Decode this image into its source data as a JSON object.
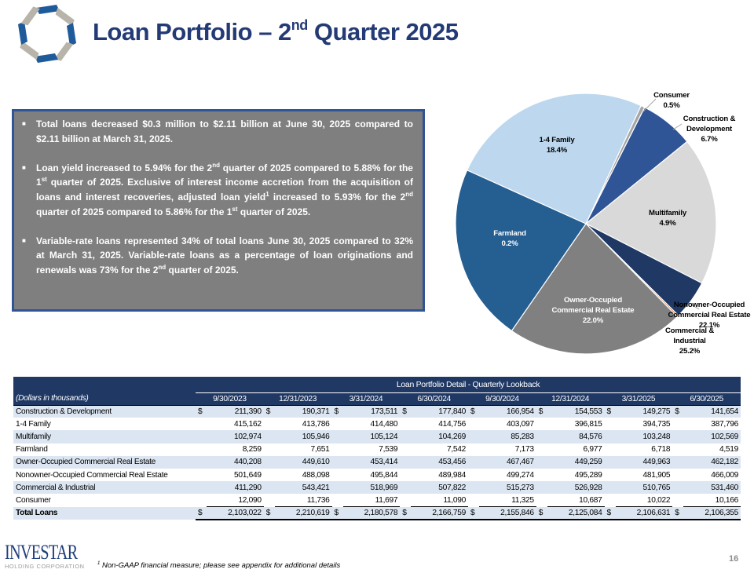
{
  "header": {
    "title_pre": "Loan Portfolio – 2",
    "title_sup": "nd",
    "title_post": " Quarter 2025"
  },
  "summary": {
    "bullets": [
      [
        {
          "t": "Total loans decreased $0.3 million to $2.11 billion at June 30, 2025 compared to $2.11 billion at March 31, 2025."
        }
      ],
      [
        {
          "t": "Loan yield increased to 5.94% for the 2"
        },
        {
          "s": "nd"
        },
        {
          "t": " quarter of 2025 compared to 5.88% for the 1"
        },
        {
          "s": "st"
        },
        {
          "t": " quarter of 2025. Exclusive of interest income accretion from the acquisition of loans and interest recoveries, adjusted loan yield"
        },
        {
          "s": "1"
        },
        {
          "t": " increased to 5.93% for the 2"
        },
        {
          "s": "nd"
        },
        {
          "t": " quarter of 2025 compared to 5.86% for the 1"
        },
        {
          "s": "st"
        },
        {
          "t": " quarter of 2025."
        }
      ],
      [
        {
          "t": "Variable-rate loans represented 34% of total loans June 30, 2025 compared to 32% at March 31, 2025. Variable-rate loans as a percentage of loan originations and renewals was 73% for the 2"
        },
        {
          "s": "nd"
        },
        {
          "t": " quarter of 2025."
        }
      ]
    ]
  },
  "chart_data": {
    "type": "pie",
    "title": "",
    "start_angle_deg": 25,
    "slices": [
      {
        "label": [
          "Consumer"
        ],
        "value": 0.5,
        "pct": "0.5%",
        "color": "#a6a6a6"
      },
      {
        "label": [
          "Construction &",
          "Development"
        ],
        "value": 6.7,
        "pct": "6.7%",
        "color": "#2f5597"
      },
      {
        "label": [
          "1-4 Family"
        ],
        "value": 18.4,
        "pct": "18.4%",
        "color": "#d9d9d9"
      },
      {
        "label": [
          "Multifamily"
        ],
        "value": 4.9,
        "pct": "4.9%",
        "color": "#1f3864"
      },
      {
        "label": [
          "Farmland"
        ],
        "value": 0.2,
        "pct": "0.2%",
        "color": "#c55a11"
      },
      {
        "label": [
          "Owner-Occupied",
          "Commercial Real Estate"
        ],
        "value": 22.0,
        "pct": "22.0%",
        "color": "#808080"
      },
      {
        "label": [
          "Nonowner-Occupied",
          "Commercial Real Estate"
        ],
        "value": 22.1,
        "pct": "22.1%",
        "color": "#255e91"
      },
      {
        "label": [
          "Commercial &",
          "Industrial"
        ],
        "value": 25.2,
        "pct": "25.2%",
        "color": "#bdd7ee"
      }
    ]
  },
  "table": {
    "title": "Loan Portfolio Detail - Quarterly Lookback",
    "units": "(Dollars in thousands)",
    "columns": [
      "9/30/2023",
      "12/31/2023",
      "3/31/2024",
      "6/30/2024",
      "9/30/2024",
      "12/31/2024",
      "3/31/2025",
      "6/30/2025"
    ],
    "currency": "$",
    "rows": [
      {
        "label": "Construction & Development",
        "dollar": true,
        "values": [
          "211,390",
          "190,371",
          "173,511",
          "177,840",
          "166,954",
          "154,553",
          "149,275",
          "141,654"
        ]
      },
      {
        "label": "1-4 Family",
        "values": [
          "415,162",
          "413,786",
          "414,480",
          "414,756",
          "403,097",
          "396,815",
          "394,735",
          "387,796"
        ]
      },
      {
        "label": "Multifamily",
        "values": [
          "102,974",
          "105,946",
          "105,124",
          "104,269",
          "85,283",
          "84,576",
          "103,248",
          "102,569"
        ]
      },
      {
        "label": "Farmland",
        "values": [
          "8,259",
          "7,651",
          "7,539",
          "7,542",
          "7,173",
          "6,977",
          "6,718",
          "4,519"
        ]
      },
      {
        "label": "Owner-Occupied Commercial Real Estate",
        "values": [
          "440,208",
          "449,610",
          "453,414",
          "453,456",
          "467,467",
          "449,259",
          "449,963",
          "462,182"
        ]
      },
      {
        "label": "Nonowner-Occupied Commercial Real Estate",
        "values": [
          "501,649",
          "488,098",
          "495,844",
          "489,984",
          "499,274",
          "495,289",
          "481,905",
          "466,009"
        ]
      },
      {
        "label": "Commercial & Industrial",
        "values": [
          "411,290",
          "543,421",
          "518,969",
          "507,822",
          "515,273",
          "526,928",
          "510,765",
          "531,460"
        ]
      },
      {
        "label": "Consumer",
        "values": [
          "12,090",
          "11,736",
          "11,697",
          "11,090",
          "11,325",
          "10,687",
          "10,022",
          "10,166"
        ]
      },
      {
        "label": "Total Loans",
        "dollar": true,
        "total": true,
        "values": [
          "2,103,022",
          "2,210,619",
          "2,180,578",
          "2,166,759",
          "2,155,846",
          "2,125,084",
          "2,106,631",
          "2,106,355"
        ]
      }
    ]
  },
  "footer": {
    "logo_word": "INVESTAR",
    "logo_sub": "HOLDING CORPORATION",
    "note_sup": "1",
    "note": " Non-GAAP financial measure;  please  see  appendix  for additional  details",
    "page": "16"
  }
}
